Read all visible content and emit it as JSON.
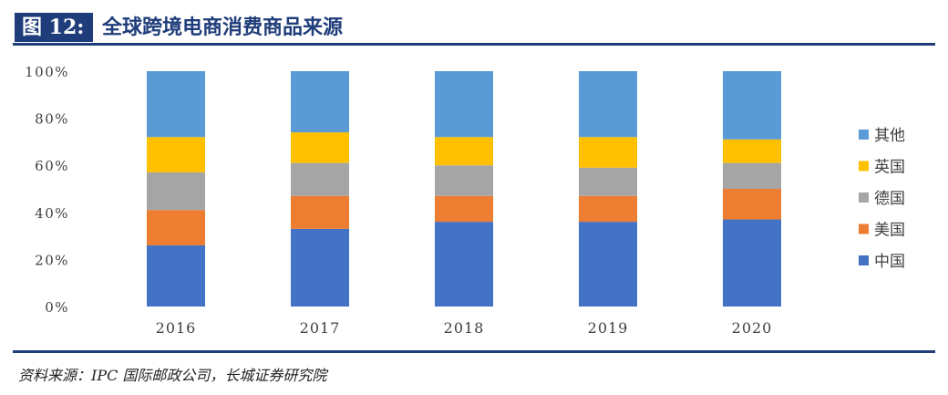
{
  "figure": {
    "label": "图 12:",
    "title": "全球跨境电商消费商品来源",
    "source": "资料来源：IPC 国际邮政公司，长城证券研究院"
  },
  "chart_data": {
    "type": "bar",
    "stacked": true,
    "percent": true,
    "categories": [
      "2016",
      "2017",
      "2018",
      "2019",
      "2020"
    ],
    "ylim": [
      0,
      100
    ],
    "yticks": [
      0,
      20,
      40,
      60,
      80,
      100
    ],
    "ytick_labels": [
      "0%",
      "20%",
      "40%",
      "60%",
      "80%",
      "100%"
    ],
    "grid": false,
    "legend_position": "right",
    "series": [
      {
        "name": "中国",
        "color": "#4472c4",
        "values": [
          26,
          33,
          36,
          36,
          37
        ]
      },
      {
        "name": "美国",
        "color": "#ed7d31",
        "values": [
          15,
          14,
          11,
          11,
          13
        ]
      },
      {
        "name": "德国",
        "color": "#a5a5a5",
        "values": [
          16,
          14,
          13,
          12,
          11
        ]
      },
      {
        "name": "英国",
        "color": "#ffc000",
        "values": [
          15,
          13,
          12,
          13,
          10
        ]
      },
      {
        "name": "其他",
        "color": "#5b9bd5",
        "values": [
          28,
          26,
          28,
          28,
          29
        ]
      }
    ]
  }
}
